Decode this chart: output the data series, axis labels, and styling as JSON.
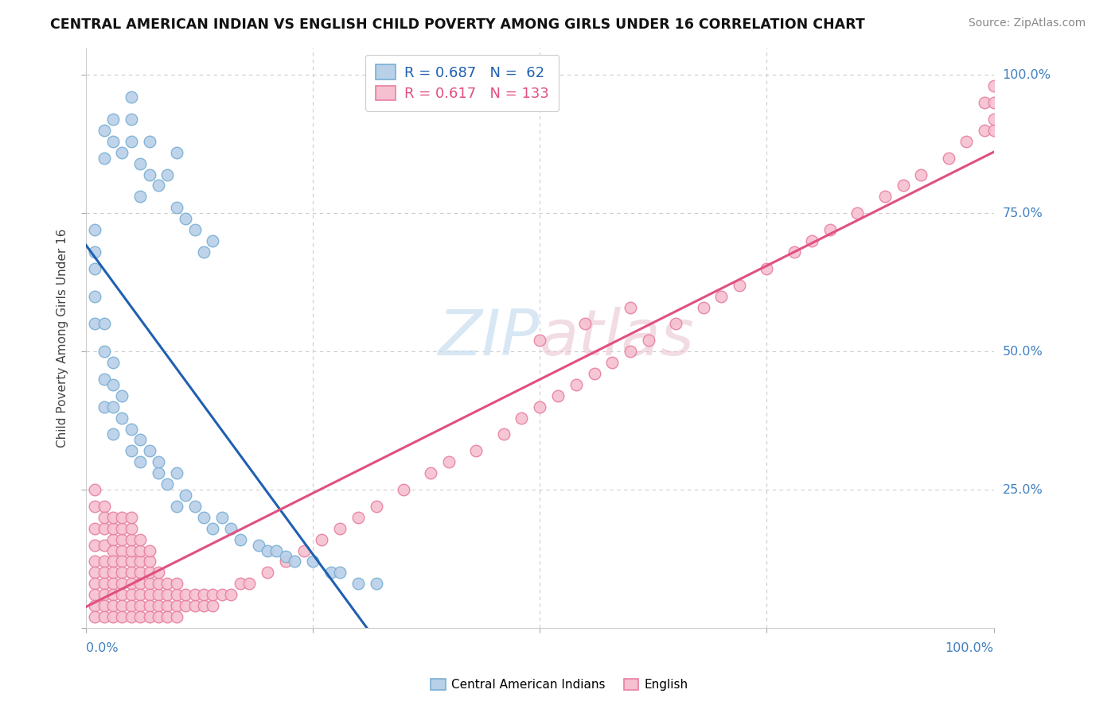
{
  "title": "CENTRAL AMERICAN INDIAN VS ENGLISH CHILD POVERTY AMONG GIRLS UNDER 16 CORRELATION CHART",
  "source": "Source: ZipAtlas.com",
  "ylabel": "Child Poverty Among Girls Under 16",
  "legend_blue_label": "Central American Indians",
  "legend_pink_label": "English",
  "R_blue": 0.687,
  "N_blue": 62,
  "R_pink": 0.617,
  "N_pink": 133,
  "blue_color": "#b8d0e8",
  "blue_edge": "#7aafd4",
  "pink_color": "#f5c0d0",
  "pink_edge": "#e87fa0",
  "blue_line_color": "#2060b0",
  "pink_line_color": "#e05080",
  "watermark_color": "#c8ddf0",
  "right_tick_color": "#4080c0",
  "bottom_tick_color": "#4080c0",
  "blue_x": [
    0.02,
    0.02,
    0.03,
    0.03,
    0.04,
    0.05,
    0.05,
    0.05,
    0.06,
    0.06,
    0.07,
    0.07,
    0.08,
    0.09,
    0.1,
    0.1,
    0.11,
    0.12,
    0.13,
    0.14,
    0.01,
    0.01,
    0.01,
    0.01,
    0.01,
    0.02,
    0.02,
    0.02,
    0.02,
    0.03,
    0.03,
    0.03,
    0.03,
    0.04,
    0.04,
    0.05,
    0.05,
    0.06,
    0.06,
    0.07,
    0.08,
    0.08,
    0.09,
    0.1,
    0.1,
    0.11,
    0.12,
    0.13,
    0.14,
    0.15,
    0.16,
    0.17,
    0.19,
    0.2,
    0.21,
    0.22,
    0.23,
    0.25,
    0.27,
    0.28,
    0.3,
    0.32
  ],
  "blue_y": [
    0.85,
    0.9,
    0.88,
    0.92,
    0.86,
    0.88,
    0.92,
    0.96,
    0.78,
    0.84,
    0.82,
    0.88,
    0.8,
    0.82,
    0.76,
    0.86,
    0.74,
    0.72,
    0.68,
    0.7,
    0.72,
    0.68,
    0.65,
    0.6,
    0.55,
    0.55,
    0.5,
    0.45,
    0.4,
    0.48,
    0.44,
    0.4,
    0.35,
    0.42,
    0.38,
    0.36,
    0.32,
    0.34,
    0.3,
    0.32,
    0.28,
    0.3,
    0.26,
    0.28,
    0.22,
    0.24,
    0.22,
    0.2,
    0.18,
    0.2,
    0.18,
    0.16,
    0.15,
    0.14,
    0.14,
    0.13,
    0.12,
    0.12,
    0.1,
    0.1,
    0.08,
    0.08
  ],
  "pink_x": [
    0.01,
    0.01,
    0.01,
    0.01,
    0.01,
    0.01,
    0.01,
    0.01,
    0.01,
    0.01,
    0.02,
    0.02,
    0.02,
    0.02,
    0.02,
    0.02,
    0.02,
    0.02,
    0.02,
    0.02,
    0.03,
    0.03,
    0.03,
    0.03,
    0.03,
    0.03,
    0.03,
    0.03,
    0.03,
    0.03,
    0.04,
    0.04,
    0.04,
    0.04,
    0.04,
    0.04,
    0.04,
    0.04,
    0.04,
    0.04,
    0.05,
    0.05,
    0.05,
    0.05,
    0.05,
    0.05,
    0.05,
    0.05,
    0.05,
    0.05,
    0.06,
    0.06,
    0.06,
    0.06,
    0.06,
    0.06,
    0.06,
    0.06,
    0.07,
    0.07,
    0.07,
    0.07,
    0.07,
    0.07,
    0.07,
    0.08,
    0.08,
    0.08,
    0.08,
    0.08,
    0.09,
    0.09,
    0.09,
    0.09,
    0.1,
    0.1,
    0.1,
    0.1,
    0.11,
    0.11,
    0.12,
    0.12,
    0.13,
    0.13,
    0.14,
    0.14,
    0.15,
    0.16,
    0.17,
    0.18,
    0.2,
    0.22,
    0.24,
    0.26,
    0.28,
    0.3,
    0.32,
    0.35,
    0.38,
    0.4,
    0.43,
    0.46,
    0.48,
    0.5,
    0.52,
    0.54,
    0.56,
    0.58,
    0.6,
    0.62,
    0.65,
    0.68,
    0.7,
    0.72,
    0.75,
    0.78,
    0.8,
    0.82,
    0.85,
    0.88,
    0.9,
    0.92,
    0.95,
    0.97,
    0.99,
    0.99,
    1.0,
    1.0,
    1.0,
    1.0,
    0.5,
    0.55,
    0.6
  ],
  "pink_y": [
    0.18,
    0.15,
    0.12,
    0.22,
    0.1,
    0.08,
    0.06,
    0.04,
    0.02,
    0.25,
    0.18,
    0.15,
    0.12,
    0.1,
    0.08,
    0.06,
    0.04,
    0.02,
    0.22,
    0.2,
    0.16,
    0.14,
    0.12,
    0.1,
    0.08,
    0.06,
    0.04,
    0.02,
    0.18,
    0.2,
    0.14,
    0.12,
    0.1,
    0.08,
    0.06,
    0.04,
    0.02,
    0.16,
    0.18,
    0.2,
    0.12,
    0.1,
    0.08,
    0.06,
    0.04,
    0.02,
    0.14,
    0.16,
    0.18,
    0.2,
    0.1,
    0.08,
    0.06,
    0.04,
    0.02,
    0.12,
    0.14,
    0.16,
    0.08,
    0.06,
    0.04,
    0.02,
    0.1,
    0.12,
    0.14,
    0.06,
    0.04,
    0.02,
    0.08,
    0.1,
    0.04,
    0.02,
    0.06,
    0.08,
    0.04,
    0.02,
    0.06,
    0.08,
    0.04,
    0.06,
    0.04,
    0.06,
    0.04,
    0.06,
    0.04,
    0.06,
    0.06,
    0.06,
    0.08,
    0.08,
    0.1,
    0.12,
    0.14,
    0.16,
    0.18,
    0.2,
    0.22,
    0.25,
    0.28,
    0.3,
    0.32,
    0.35,
    0.38,
    0.4,
    0.42,
    0.44,
    0.46,
    0.48,
    0.5,
    0.52,
    0.55,
    0.58,
    0.6,
    0.62,
    0.65,
    0.68,
    0.7,
    0.72,
    0.75,
    0.78,
    0.8,
    0.82,
    0.85,
    0.88,
    0.9,
    0.95,
    0.9,
    0.92,
    0.95,
    0.98,
    0.52,
    0.55,
    0.58
  ]
}
